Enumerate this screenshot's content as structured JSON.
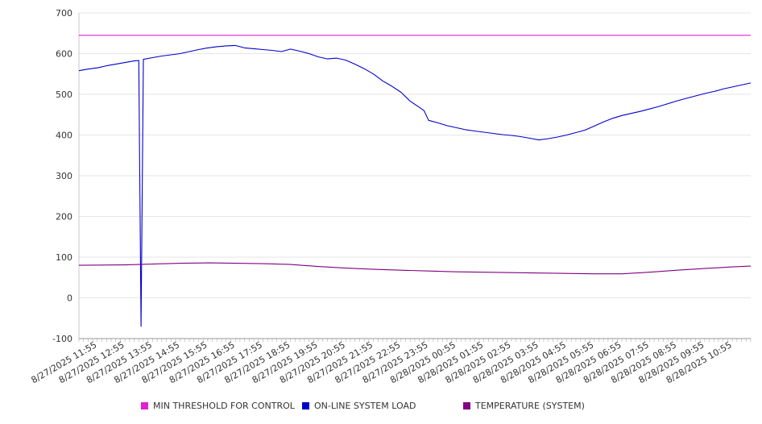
{
  "chart_data": {
    "type": "line",
    "title": "",
    "xlabel": "",
    "ylabel": "",
    "ylim": [
      -100,
      700
    ],
    "yticks": [
      -100,
      0,
      100,
      200,
      300,
      400,
      500,
      600,
      700
    ],
    "grid": true,
    "legend_position": "bottom",
    "x_start": "8/27/2025 11:15",
    "x_end": "8/28/2025 11:35",
    "x_tick_labels": [
      "8/27/2025 11:55",
      "8/27/2025 12:55",
      "8/27/2025 13:55",
      "8/27/2025 14:55",
      "8/27/2025 15:55",
      "8/27/2025 16:55",
      "8/27/2025 17:55",
      "8/27/2025 18:55",
      "8/27/2025 19:55",
      "8/27/2025 20:55",
      "8/27/2025 21:55",
      "8/27/2025 22:55",
      "8/27/2025 23:55",
      "8/28/2025 00:55",
      "8/28/2025 01:55",
      "8/28/2025 02:55",
      "8/28/2025 03:55",
      "8/28/2025 04:55",
      "8/28/2025 05:55",
      "8/28/2025 06:55",
      "8/28/2025 07:55",
      "8/28/2025 08:55",
      "8/28/2025 09:55",
      "8/28/2025 10:55"
    ],
    "series": [
      {
        "name": "MIN THRESHOLD FOR CONTROL",
        "color": "#e020d0",
        "points": [
          [
            "8/27/2025 11:15",
            645
          ],
          [
            "8/28/2025 11:35",
            645
          ]
        ]
      },
      {
        "name": "ON-LINE SYSTEM LOAD",
        "color": "#0000cc",
        "points": [
          [
            "8/27/2025 11:15",
            558
          ],
          [
            "8/27/2025 11:35",
            562
          ],
          [
            "8/27/2025 11:55",
            565
          ],
          [
            "8/27/2025 12:15",
            570
          ],
          [
            "8/27/2025 12:35",
            574
          ],
          [
            "8/27/2025 12:55",
            578
          ],
          [
            "8/27/2025 13:15",
            582
          ],
          [
            "8/27/2025 13:25",
            583
          ],
          [
            "8/27/2025 13:30",
            -70
          ],
          [
            "8/27/2025 13:35",
            586
          ],
          [
            "8/27/2025 13:55",
            590
          ],
          [
            "8/27/2025 14:15",
            594
          ],
          [
            "8/27/2025 14:35",
            597
          ],
          [
            "8/27/2025 14:55",
            600
          ],
          [
            "8/27/2025 15:15",
            605
          ],
          [
            "8/27/2025 15:35",
            610
          ],
          [
            "8/27/2025 15:55",
            614
          ],
          [
            "8/27/2025 16:15",
            617
          ],
          [
            "8/27/2025 16:35",
            619
          ],
          [
            "8/27/2025 16:55",
            620
          ],
          [
            "8/27/2025 17:15",
            614
          ],
          [
            "8/27/2025 17:35",
            612
          ],
          [
            "8/27/2025 17:55",
            610
          ],
          [
            "8/27/2025 18:15",
            608
          ],
          [
            "8/27/2025 18:35",
            605
          ],
          [
            "8/27/2025 18:55",
            611
          ],
          [
            "8/27/2025 19:15",
            606
          ],
          [
            "8/27/2025 19:35",
            600
          ],
          [
            "8/27/2025 19:55",
            592
          ],
          [
            "8/27/2025 20:15",
            587
          ],
          [
            "8/27/2025 20:35",
            589
          ],
          [
            "8/27/2025 20:55",
            584
          ],
          [
            "8/27/2025 21:15",
            574
          ],
          [
            "8/27/2025 21:35",
            563
          ],
          [
            "8/27/2025 21:55",
            550
          ],
          [
            "8/27/2025 22:15",
            533
          ],
          [
            "8/27/2025 22:35",
            520
          ],
          [
            "8/27/2025 22:55",
            505
          ],
          [
            "8/27/2025 23:15",
            483
          ],
          [
            "8/27/2025 23:35",
            468
          ],
          [
            "8/27/2025 23:45",
            460
          ],
          [
            "8/27/2025 23:55",
            436
          ],
          [
            "8/28/2025 00:15",
            430
          ],
          [
            "8/28/2025 00:35",
            423
          ],
          [
            "8/28/2025 00:55",
            418
          ],
          [
            "8/28/2025 01:15",
            413
          ],
          [
            "8/28/2025 01:35",
            410
          ],
          [
            "8/28/2025 01:55",
            407
          ],
          [
            "8/28/2025 02:15",
            404
          ],
          [
            "8/28/2025 02:35",
            401
          ],
          [
            "8/28/2025 02:55",
            399
          ],
          [
            "8/28/2025 03:15",
            396
          ],
          [
            "8/28/2025 03:35",
            392
          ],
          [
            "8/28/2025 03:55",
            388
          ],
          [
            "8/28/2025 04:15",
            391
          ],
          [
            "8/28/2025 04:35",
            395
          ],
          [
            "8/28/2025 04:55",
            400
          ],
          [
            "8/28/2025 05:15",
            406
          ],
          [
            "8/28/2025 05:35",
            412
          ],
          [
            "8/28/2025 05:55",
            422
          ],
          [
            "8/28/2025 06:15",
            432
          ],
          [
            "8/28/2025 06:35",
            441
          ],
          [
            "8/28/2025 06:55",
            448
          ],
          [
            "8/28/2025 07:15",
            453
          ],
          [
            "8/28/2025 07:35",
            458
          ],
          [
            "8/28/2025 07:55",
            464
          ],
          [
            "8/28/2025 08:15",
            470
          ],
          [
            "8/28/2025 08:35",
            477
          ],
          [
            "8/28/2025 08:55",
            484
          ],
          [
            "8/28/2025 09:15",
            490
          ],
          [
            "8/28/2025 09:35",
            496
          ],
          [
            "8/28/2025 09:55",
            502
          ],
          [
            "8/28/2025 10:15",
            507
          ],
          [
            "8/28/2025 10:35",
            513
          ],
          [
            "8/28/2025 10:55",
            518
          ],
          [
            "8/28/2025 11:15",
            523
          ],
          [
            "8/28/2025 11:35",
            528
          ]
        ]
      },
      {
        "name": "TEMPERATURE (SYSTEM)",
        "color": "#800080",
        "points": [
          [
            "8/27/2025 11:15",
            80
          ],
          [
            "8/27/2025 12:55",
            81
          ],
          [
            "8/27/2025 13:55",
            83
          ],
          [
            "8/27/2025 14:55",
            85
          ],
          [
            "8/27/2025 15:55",
            86
          ],
          [
            "8/27/2025 16:55",
            85
          ],
          [
            "8/27/2025 17:55",
            84
          ],
          [
            "8/27/2025 18:55",
            82
          ],
          [
            "8/27/2025 19:55",
            77
          ],
          [
            "8/27/2025 20:55",
            73
          ],
          [
            "8/27/2025 21:55",
            70
          ],
          [
            "8/27/2025 22:55",
            68
          ],
          [
            "8/27/2025 23:55",
            66
          ],
          [
            "8/28/2025 00:55",
            64
          ],
          [
            "8/28/2025 01:55",
            63
          ],
          [
            "8/28/2025 02:55",
            62
          ],
          [
            "8/28/2025 03:55",
            61
          ],
          [
            "8/28/2025 04:55",
            60
          ],
          [
            "8/28/2025 05:55",
            59
          ],
          [
            "8/28/2025 06:55",
            59
          ],
          [
            "8/28/2025 07:55",
            63
          ],
          [
            "8/28/2025 08:55",
            68
          ],
          [
            "8/28/2025 09:55",
            72
          ],
          [
            "8/28/2025 10:55",
            76
          ],
          [
            "8/28/2025 11:35",
            78
          ]
        ]
      }
    ]
  }
}
